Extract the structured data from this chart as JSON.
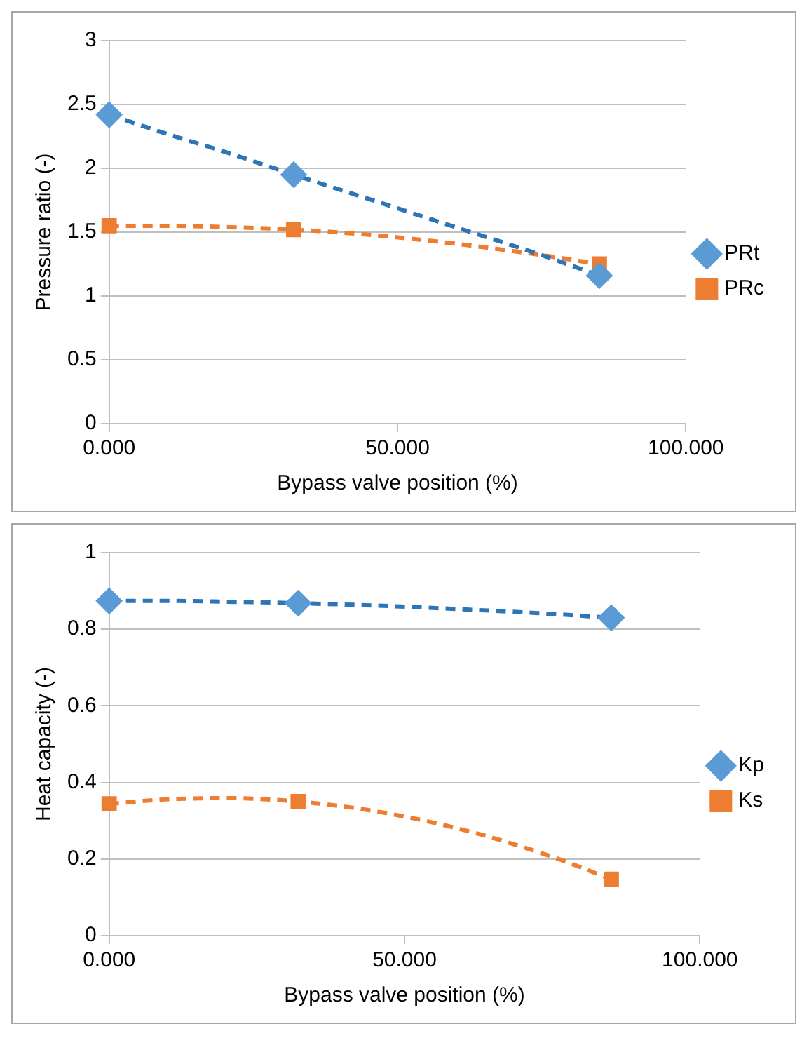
{
  "chart_data": [
    {
      "type": "scatter",
      "xlabel": "Bypass valve position (%)",
      "ylabel": "Pressure ratio (-)",
      "xlim": [
        0,
        100
      ],
      "xticks": [
        {
          "value": 0,
          "label": "0.000"
        },
        {
          "value": 50,
          "label": "50.000"
        },
        {
          "value": 100,
          "label": "100.000"
        }
      ],
      "ylim": [
        0,
        3
      ],
      "yticks": [
        0,
        0.5,
        1,
        1.5,
        2,
        2.5,
        3
      ],
      "grid": "y",
      "legend": "right",
      "series": [
        {
          "name": "PRt",
          "color": "#5b9bd5",
          "marker": "diamond",
          "x": [
            0,
            32,
            85
          ],
          "values": [
            2.42,
            1.95,
            1.16
          ]
        },
        {
          "name": "PRc",
          "color": "#ed7d31",
          "marker": "square",
          "x": [
            0,
            32,
            85
          ],
          "values": [
            1.55,
            1.52,
            1.25
          ]
        },
        {
          "color": "#2e75b6",
          "type": "line",
          "marker": "none",
          "line_style": "dashed",
          "x": [
            0,
            10,
            20,
            32,
            45,
            60,
            75,
            85
          ],
          "values": [
            2.42,
            2.27,
            2.13,
            1.95,
            1.76,
            1.54,
            1.32,
            1.16
          ]
        },
        {
          "color": "#ed7d31",
          "type": "line",
          "marker": "none",
          "line_style": "dashed",
          "x": [
            0,
            10,
            20,
            32,
            45,
            60,
            75,
            85
          ],
          "values": [
            1.55,
            1.55,
            1.54,
            1.52,
            1.48,
            1.41,
            1.32,
            1.25
          ]
        }
      ]
    },
    {
      "type": "scatter",
      "xlabel": "Bypass valve position (%)",
      "ylabel": "Heat capacity (-)",
      "xlim": [
        0,
        100
      ],
      "xticks": [
        {
          "value": 0,
          "label": "0.000"
        },
        {
          "value": 50,
          "label": "50.000"
        },
        {
          "value": 100,
          "label": "100.000"
        }
      ],
      "ylim": [
        0,
        1
      ],
      "yticks": [
        0,
        0.2,
        0.4,
        0.6,
        0.8,
        1
      ],
      "grid": "y",
      "legend": "right",
      "series": [
        {
          "name": "Kp",
          "color": "#5b9bd5",
          "marker": "diamond",
          "x": [
            0,
            32,
            85
          ],
          "values": [
            0.874,
            0.868,
            0.83
          ]
        },
        {
          "name": "Ks",
          "color": "#ed7d31",
          "marker": "square",
          "x": [
            0,
            32,
            85
          ],
          "values": [
            0.344,
            0.35,
            0.147
          ]
        },
        {
          "color": "#2e75b6",
          "type": "line",
          "marker": "none",
          "line_style": "dashed",
          "x": [
            0,
            10,
            20,
            32,
            45,
            60,
            75,
            85
          ],
          "values": [
            0.874,
            0.874,
            0.872,
            0.868,
            0.862,
            0.852,
            0.84,
            0.83
          ]
        },
        {
          "color": "#ed7d31",
          "type": "line",
          "marker": "none",
          "line_style": "dashed",
          "x": [
            0,
            10,
            20,
            32,
            45,
            60,
            75,
            85
          ],
          "values": [
            0.344,
            0.356,
            0.359,
            0.35,
            0.325,
            0.276,
            0.206,
            0.147
          ]
        }
      ]
    }
  ]
}
